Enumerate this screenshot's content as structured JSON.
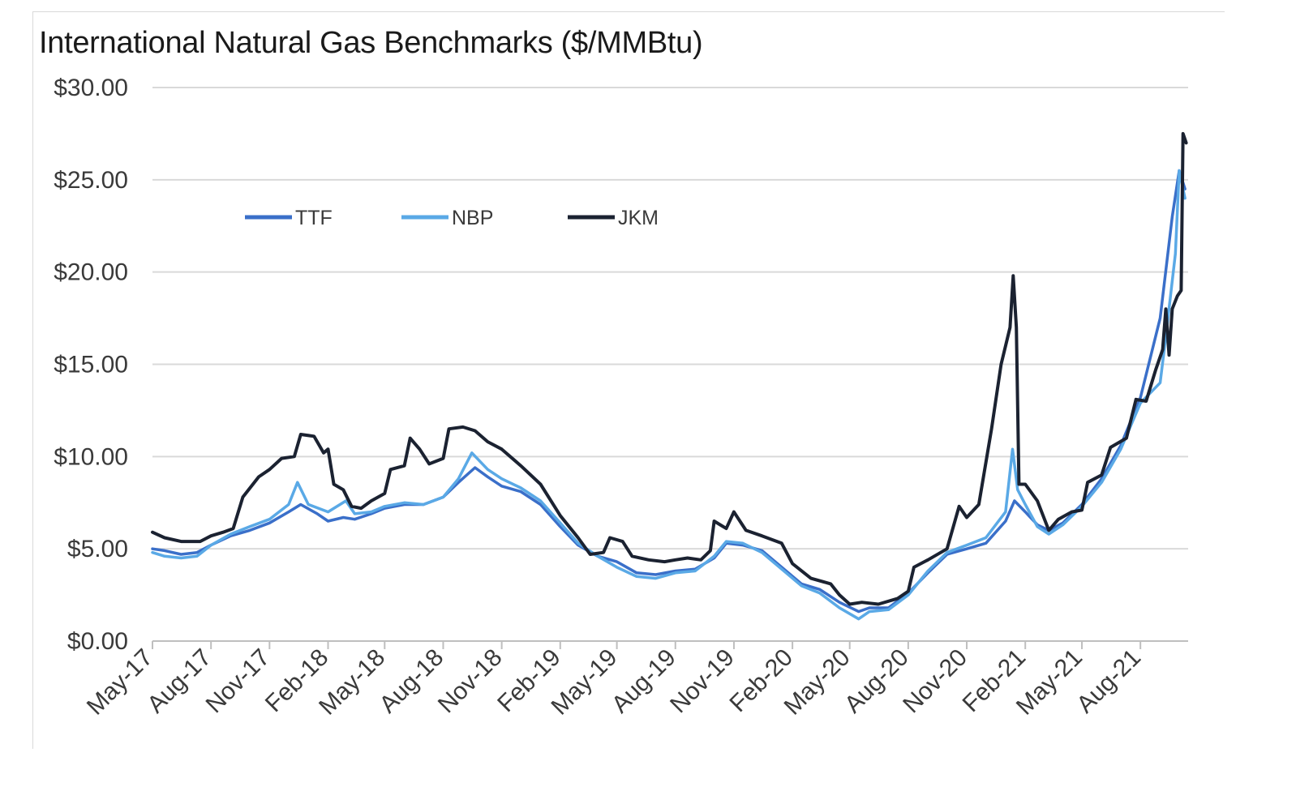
{
  "chart_data": {
    "type": "line",
    "title": "International Natural Gas Benchmarks ($/MMBtu)",
    "xlabel": "",
    "ylabel": "",
    "ylim": [
      0,
      30
    ],
    "y_ticks": [
      "$0.00",
      "$5.00",
      "$10.00",
      "$15.00",
      "$20.00",
      "$25.00",
      "$30.00"
    ],
    "y_tick_values": [
      0,
      5,
      10,
      15,
      20,
      25,
      30
    ],
    "x_ticks": [
      "May-17",
      "Aug-17",
      "Nov-17",
      "Feb-18",
      "May-18",
      "Aug-18",
      "Nov-18",
      "Feb-19",
      "May-19",
      "Aug-19",
      "Nov-19",
      "Feb-20",
      "May-20",
      "Aug-20",
      "Nov-20",
      "Feb-21",
      "May-21",
      "Aug-21"
    ],
    "x_tick_dates": [
      "2017-05-01",
      "2017-08-01",
      "2017-11-01",
      "2018-02-01",
      "2018-05-01",
      "2018-08-01",
      "2018-11-01",
      "2019-02-01",
      "2019-05-01",
      "2019-08-01",
      "2019-11-01",
      "2020-02-01",
      "2020-05-01",
      "2020-08-01",
      "2020-11-01",
      "2021-02-01",
      "2021-05-01",
      "2021-08-01"
    ],
    "x_range": [
      "2017-05-01",
      "2021-10-15"
    ],
    "grid": "horizontal",
    "legend_position": "top-left",
    "series": [
      {
        "name": "TTF",
        "color": "#3a6fc9",
        "points": [
          [
            "2017-05-01",
            5.0
          ],
          [
            "2017-05-20",
            4.9
          ],
          [
            "2017-06-15",
            4.7
          ],
          [
            "2017-07-10",
            4.8
          ],
          [
            "2017-08-01",
            5.2
          ],
          [
            "2017-09-01",
            5.7
          ],
          [
            "2017-10-01",
            6.0
          ],
          [
            "2017-11-01",
            6.4
          ],
          [
            "2017-12-01",
            7.0
          ],
          [
            "2017-12-20",
            7.4
          ],
          [
            "2018-01-15",
            6.9
          ],
          [
            "2018-02-01",
            6.5
          ],
          [
            "2018-02-25",
            6.7
          ],
          [
            "2018-03-15",
            6.6
          ],
          [
            "2018-04-10",
            6.9
          ],
          [
            "2018-05-01",
            7.2
          ],
          [
            "2018-06-01",
            7.4
          ],
          [
            "2018-07-01",
            7.4
          ],
          [
            "2018-08-01",
            7.8
          ],
          [
            "2018-08-25",
            8.6
          ],
          [
            "2018-09-20",
            9.4
          ],
          [
            "2018-10-10",
            8.9
          ],
          [
            "2018-11-01",
            8.4
          ],
          [
            "2018-12-01",
            8.1
          ],
          [
            "2019-01-01",
            7.4
          ],
          [
            "2019-02-01",
            6.2
          ],
          [
            "2019-03-01",
            5.2
          ],
          [
            "2019-04-01",
            4.6
          ],
          [
            "2019-05-01",
            4.3
          ],
          [
            "2019-06-01",
            3.7
          ],
          [
            "2019-07-01",
            3.6
          ],
          [
            "2019-08-01",
            3.8
          ],
          [
            "2019-09-01",
            3.9
          ],
          [
            "2019-10-01",
            4.5
          ],
          [
            "2019-10-20",
            5.3
          ],
          [
            "2019-11-15",
            5.2
          ],
          [
            "2019-12-15",
            4.9
          ],
          [
            "2020-01-15",
            4.0
          ],
          [
            "2020-02-15",
            3.1
          ],
          [
            "2020-03-15",
            2.8
          ],
          [
            "2020-04-15",
            2.1
          ],
          [
            "2020-05-15",
            1.6
          ],
          [
            "2020-06-01",
            1.8
          ],
          [
            "2020-07-01",
            1.8
          ],
          [
            "2020-08-01",
            2.6
          ],
          [
            "2020-09-01",
            3.7
          ],
          [
            "2020-10-01",
            4.7
          ],
          [
            "2020-11-01",
            5.0
          ],
          [
            "2020-12-01",
            5.3
          ],
          [
            "2021-01-01",
            6.5
          ],
          [
            "2021-01-15",
            7.6
          ],
          [
            "2021-02-01",
            7.0
          ],
          [
            "2021-02-20",
            6.3
          ],
          [
            "2021-03-10",
            6.0
          ],
          [
            "2021-04-01",
            6.4
          ],
          [
            "2021-05-01",
            7.4
          ],
          [
            "2021-06-01",
            8.8
          ],
          [
            "2021-07-01",
            10.6
          ],
          [
            "2021-08-01",
            13.2
          ],
          [
            "2021-09-01",
            17.5
          ],
          [
            "2021-09-20",
            23.0
          ],
          [
            "2021-10-01",
            25.5
          ],
          [
            "2021-10-10",
            24.5
          ]
        ]
      },
      {
        "name": "NBP",
        "color": "#5aa9e6",
        "points": [
          [
            "2017-05-01",
            4.8
          ],
          [
            "2017-05-20",
            4.6
          ],
          [
            "2017-06-15",
            4.5
          ],
          [
            "2017-07-10",
            4.6
          ],
          [
            "2017-08-01",
            5.2
          ],
          [
            "2017-09-01",
            5.8
          ],
          [
            "2017-10-01",
            6.2
          ],
          [
            "2017-11-01",
            6.6
          ],
          [
            "2017-12-01",
            7.4
          ],
          [
            "2017-12-15",
            8.6
          ],
          [
            "2018-01-01",
            7.4
          ],
          [
            "2018-02-01",
            7.0
          ],
          [
            "2018-03-01",
            7.6
          ],
          [
            "2018-03-15",
            6.9
          ],
          [
            "2018-04-10",
            7.0
          ],
          [
            "2018-05-01",
            7.3
          ],
          [
            "2018-06-01",
            7.5
          ],
          [
            "2018-07-01",
            7.4
          ],
          [
            "2018-08-01",
            7.8
          ],
          [
            "2018-08-25",
            8.8
          ],
          [
            "2018-09-15",
            10.2
          ],
          [
            "2018-10-10",
            9.3
          ],
          [
            "2018-11-01",
            8.8
          ],
          [
            "2018-12-01",
            8.3
          ],
          [
            "2019-01-01",
            7.6
          ],
          [
            "2019-02-01",
            6.4
          ],
          [
            "2019-03-01",
            5.3
          ],
          [
            "2019-04-01",
            4.6
          ],
          [
            "2019-05-01",
            4.0
          ],
          [
            "2019-06-01",
            3.5
          ],
          [
            "2019-07-01",
            3.4
          ],
          [
            "2019-08-01",
            3.7
          ],
          [
            "2019-09-01",
            3.8
          ],
          [
            "2019-10-01",
            4.6
          ],
          [
            "2019-10-20",
            5.4
          ],
          [
            "2019-11-15",
            5.3
          ],
          [
            "2019-12-15",
            4.8
          ],
          [
            "2020-01-15",
            3.9
          ],
          [
            "2020-02-15",
            3.0
          ],
          [
            "2020-03-15",
            2.6
          ],
          [
            "2020-04-15",
            1.8
          ],
          [
            "2020-05-15",
            1.2
          ],
          [
            "2020-06-01",
            1.6
          ],
          [
            "2020-07-01",
            1.7
          ],
          [
            "2020-08-01",
            2.5
          ],
          [
            "2020-09-01",
            3.8
          ],
          [
            "2020-10-01",
            4.8
          ],
          [
            "2020-11-01",
            5.2
          ],
          [
            "2020-12-01",
            5.6
          ],
          [
            "2021-01-01",
            7.0
          ],
          [
            "2021-01-12",
            10.4
          ],
          [
            "2021-01-20",
            8.2
          ],
          [
            "2021-02-01",
            7.4
          ],
          [
            "2021-02-20",
            6.2
          ],
          [
            "2021-03-10",
            5.8
          ],
          [
            "2021-04-01",
            6.3
          ],
          [
            "2021-05-01",
            7.3
          ],
          [
            "2021-06-01",
            8.6
          ],
          [
            "2021-07-01",
            10.4
          ],
          [
            "2021-08-01",
            12.9
          ],
          [
            "2021-09-01",
            14.0
          ],
          [
            "2021-09-10",
            16.5
          ],
          [
            "2021-09-25",
            21.0
          ],
          [
            "2021-10-01",
            25.5
          ],
          [
            "2021-10-10",
            24.0
          ]
        ]
      },
      {
        "name": "JKM",
        "color": "#1b2231",
        "points": [
          [
            "2017-05-01",
            5.9
          ],
          [
            "2017-05-20",
            5.6
          ],
          [
            "2017-06-15",
            5.4
          ],
          [
            "2017-07-15",
            5.4
          ],
          [
            "2017-08-01",
            5.7
          ],
          [
            "2017-08-20",
            5.9
          ],
          [
            "2017-09-05",
            6.1
          ],
          [
            "2017-09-20",
            7.8
          ],
          [
            "2017-10-15",
            8.9
          ],
          [
            "2017-11-01",
            9.3
          ],
          [
            "2017-11-20",
            9.9
          ],
          [
            "2017-12-10",
            10.0
          ],
          [
            "2017-12-20",
            11.2
          ],
          [
            "2018-01-10",
            11.1
          ],
          [
            "2018-01-25",
            10.2
          ],
          [
            "2018-02-01",
            10.4
          ],
          [
            "2018-02-10",
            8.5
          ],
          [
            "2018-02-25",
            8.2
          ],
          [
            "2018-03-10",
            7.3
          ],
          [
            "2018-03-25",
            7.2
          ],
          [
            "2018-04-10",
            7.6
          ],
          [
            "2018-05-01",
            8.0
          ],
          [
            "2018-05-10",
            9.3
          ],
          [
            "2018-06-01",
            9.5
          ],
          [
            "2018-06-10",
            11.0
          ],
          [
            "2018-06-25",
            10.4
          ],
          [
            "2018-07-10",
            9.6
          ],
          [
            "2018-08-01",
            9.9
          ],
          [
            "2018-08-10",
            11.5
          ],
          [
            "2018-09-01",
            11.6
          ],
          [
            "2018-09-20",
            11.4
          ],
          [
            "2018-10-10",
            10.8
          ],
          [
            "2018-11-01",
            10.4
          ],
          [
            "2018-12-01",
            9.5
          ],
          [
            "2019-01-01",
            8.5
          ],
          [
            "2019-02-01",
            6.8
          ],
          [
            "2019-03-01",
            5.6
          ],
          [
            "2019-03-20",
            4.7
          ],
          [
            "2019-04-10",
            4.8
          ],
          [
            "2019-04-20",
            5.6
          ],
          [
            "2019-05-10",
            5.4
          ],
          [
            "2019-05-25",
            4.6
          ],
          [
            "2019-06-20",
            4.4
          ],
          [
            "2019-07-15",
            4.3
          ],
          [
            "2019-08-01",
            4.4
          ],
          [
            "2019-08-20",
            4.5
          ],
          [
            "2019-09-10",
            4.4
          ],
          [
            "2019-09-25",
            4.9
          ],
          [
            "2019-10-01",
            6.5
          ],
          [
            "2019-10-20",
            6.1
          ],
          [
            "2019-11-01",
            7.0
          ],
          [
            "2019-11-20",
            6.0
          ],
          [
            "2019-12-15",
            5.7
          ],
          [
            "2020-01-15",
            5.3
          ],
          [
            "2020-02-01",
            4.2
          ],
          [
            "2020-03-01",
            3.4
          ],
          [
            "2020-04-01",
            3.1
          ],
          [
            "2020-04-15",
            2.5
          ],
          [
            "2020-05-01",
            2.0
          ],
          [
            "2020-05-20",
            2.1
          ],
          [
            "2020-06-15",
            2.0
          ],
          [
            "2020-07-15",
            2.3
          ],
          [
            "2020-08-01",
            2.7
          ],
          [
            "2020-08-10",
            4.0
          ],
          [
            "2020-09-01",
            4.4
          ],
          [
            "2020-10-01",
            5.0
          ],
          [
            "2020-10-20",
            7.3
          ],
          [
            "2020-11-01",
            6.7
          ],
          [
            "2020-11-20",
            7.4
          ],
          [
            "2020-12-10",
            11.5
          ],
          [
            "2020-12-25",
            15.0
          ],
          [
            "2021-01-08",
            17.0
          ],
          [
            "2021-01-13",
            19.8
          ],
          [
            "2021-01-18",
            17.0
          ],
          [
            "2021-01-22",
            8.5
          ],
          [
            "2021-02-01",
            8.5
          ],
          [
            "2021-02-20",
            7.6
          ],
          [
            "2021-03-10",
            6.0
          ],
          [
            "2021-03-25",
            6.6
          ],
          [
            "2021-04-15",
            7.0
          ],
          [
            "2021-05-01",
            7.1
          ],
          [
            "2021-05-10",
            8.6
          ],
          [
            "2021-06-01",
            9.0
          ],
          [
            "2021-06-15",
            10.5
          ],
          [
            "2021-07-10",
            11.0
          ],
          [
            "2021-07-25",
            13.1
          ],
          [
            "2021-08-10",
            13.0
          ],
          [
            "2021-08-25",
            14.7
          ],
          [
            "2021-09-05",
            15.8
          ],
          [
            "2021-09-10",
            18.0
          ],
          [
            "2021-09-15",
            15.5
          ],
          [
            "2021-09-20",
            18.0
          ],
          [
            "2021-09-28",
            18.7
          ],
          [
            "2021-10-04",
            19.0
          ],
          [
            "2021-10-07",
            27.5
          ],
          [
            "2021-10-12",
            27.0
          ]
        ]
      }
    ]
  }
}
